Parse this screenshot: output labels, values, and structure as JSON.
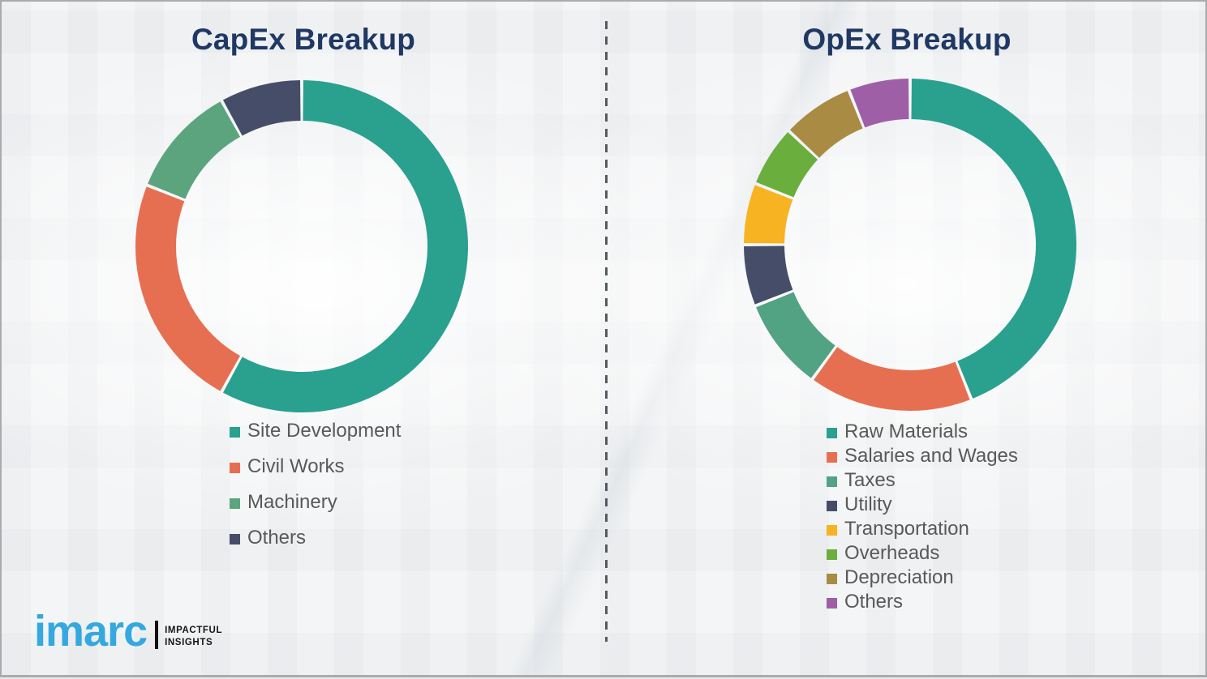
{
  "brand": {
    "name": "imarc",
    "tagline_line1": "IMPACTFUL",
    "tagline_line2": "INSIGHTS",
    "brand_color": "#35A8E0"
  },
  "colors": {
    "title_text": "#1F3864",
    "legend_text": "#595959",
    "divider_dash": "#565A5E"
  },
  "chart_data": [
    {
      "type": "pie",
      "subtype": "donut",
      "title": "CapEx Breakup",
      "categories": [
        "Site Development",
        "Civil Works",
        "Machinery",
        "Others"
      ],
      "values": [
        58,
        23,
        11,
        8
      ],
      "unit": "%",
      "colors": [
        "#2AA08F",
        "#E76F51",
        "#5CA47E",
        "#464D68"
      ],
      "start_angle_deg": 0,
      "direction": "clockwise",
      "legend_position": "below-left"
    },
    {
      "type": "pie",
      "subtype": "donut",
      "title": "OpEx Breakup",
      "categories": [
        "Raw Materials",
        "Salaries and Wages",
        "Taxes",
        "Utility",
        "Transportation",
        "Overheads",
        "Depreciation",
        "Others"
      ],
      "values": [
        44,
        16,
        9,
        6,
        6,
        6,
        7,
        6
      ],
      "unit": "%",
      "colors": [
        "#2AA08F",
        "#E76F51",
        "#52A284",
        "#464D68",
        "#F7B321",
        "#6AAE3E",
        "#A98B44",
        "#9E5FA7"
      ],
      "start_angle_deg": 0,
      "direction": "clockwise",
      "legend_position": "below-left"
    }
  ]
}
